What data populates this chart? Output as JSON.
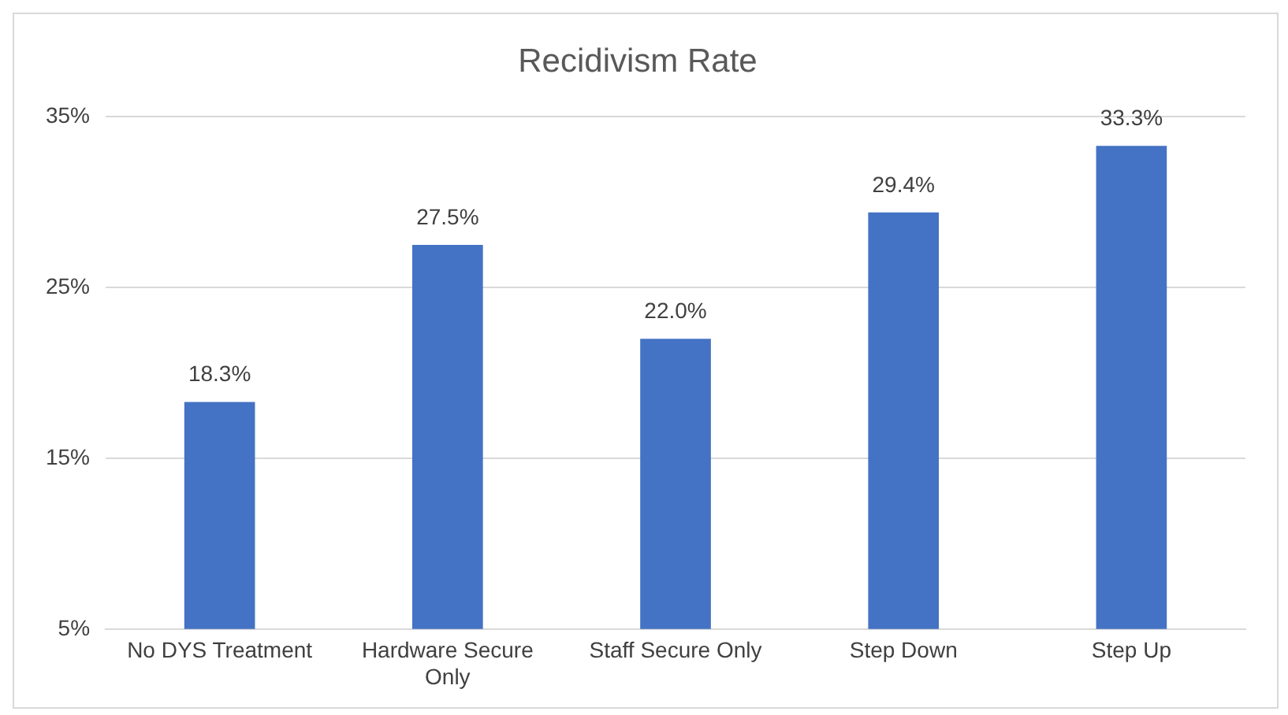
{
  "chart_data": {
    "type": "bar",
    "title": "Recidivism Rate",
    "categories": [
      "No DYS Treatment",
      "Hardware Secure Only",
      "Staff Secure Only",
      "Step Down",
      "Step Up"
    ],
    "values": [
      18.3,
      27.5,
      22.0,
      29.4,
      33.3
    ],
    "value_labels": [
      "18.3%",
      "27.5%",
      "22.0%",
      "29.4%",
      "33.3%"
    ],
    "color": "#4472c4",
    "ylim": [
      5,
      35
    ],
    "yticks": [
      {
        "value": 5,
        "label": "5%"
      },
      {
        "value": 15,
        "label": "15%"
      },
      {
        "value": 25,
        "label": "25%"
      },
      {
        "value": 35,
        "label": "35%"
      }
    ],
    "grid": "y",
    "legend": false
  }
}
